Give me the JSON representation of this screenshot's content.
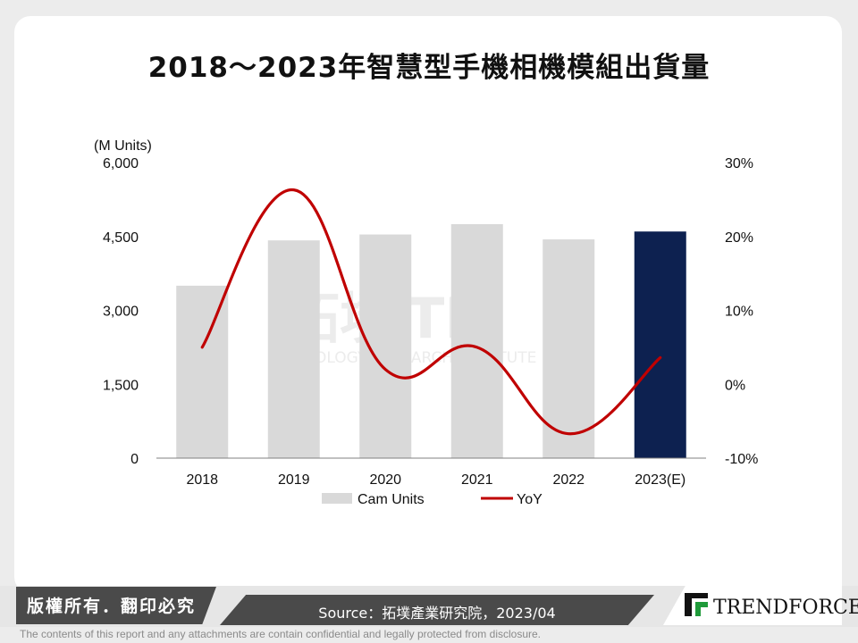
{
  "title": "2018～2023年智慧型手機相機模組出貨量",
  "chart_data": {
    "type": "bar",
    "categories": [
      "2018",
      "2019",
      "2020",
      "2021",
      "2022",
      "2023(E)"
    ],
    "series": [
      {
        "name": "Cam Units",
        "type": "bar",
        "axis": "left",
        "color": "#d9d9d9",
        "highlight": {
          "category": "2023(E)",
          "color": "#0d2150"
        },
        "values": [
          3500,
          4420,
          4540,
          4750,
          4440,
          4600
        ]
      },
      {
        "name": "YoY",
        "type": "line",
        "axis": "right",
        "color": "#c00000",
        "values": [
          5.0,
          26.3,
          2.0,
          5.0,
          -6.7,
          3.6
        ]
      }
    ],
    "y_left": {
      "label": "(M Units)",
      "range": [
        0,
        6000
      ],
      "ticks": [
        "0",
        "1,500",
        "3,000",
        "4,500",
        "6,000"
      ],
      "tick_values": [
        0,
        1500,
        3000,
        4500,
        6000
      ]
    },
    "y_right": {
      "range": [
        -10,
        30
      ],
      "ticks": [
        "-10%",
        "0%",
        "10%",
        "20%",
        "30%"
      ],
      "tick_values": [
        -10,
        0,
        10,
        20,
        30
      ]
    },
    "legend": {
      "position": "bottom",
      "items": [
        "Cam Units",
        "YoY"
      ]
    },
    "grid": false
  },
  "watermark": {
    "cjk": "拓墣",
    "latin": "TRI",
    "sub": "TOPOLOGY RESEARCH INSTITUTE"
  },
  "footer": {
    "copyright": "版權所有．翻印必究",
    "source": "Source：拓墣產業研究院，2023/04",
    "brand": "TRENDFORCE",
    "disclaimer": "The contents of this report and any attachments are contain confidential and legally protected from disclosure."
  }
}
